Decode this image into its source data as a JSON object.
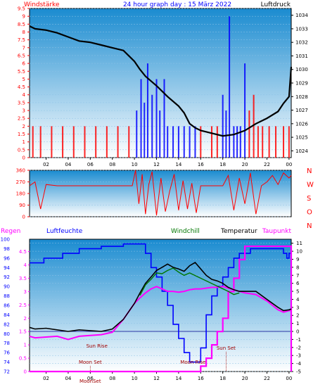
{
  "colors": {
    "red": "#ff0000",
    "blue": "#0000ff",
    "black": "#000000",
    "green": "#007700",
    "magenta": "#ff00ff",
    "moon": "#a00000",
    "bg_top": "#1a8bd0",
    "bg_bottom": "#ffffff"
  },
  "chart_data": [
    {
      "type": "bar",
      "title": "24 hour graph day : 15 März 2022",
      "y_left_label": "Windstärke",
      "y_right_label": "Luftdruck",
      "x_ticks": [
        "02",
        "04",
        "06",
        "08",
        "10",
        "12",
        "14",
        "16",
        "18",
        "20",
        "22",
        "00"
      ],
      "y_left_ticks": [
        "0",
        "0.5",
        "1",
        "1.5",
        "2",
        "2.5",
        "3",
        "3.5",
        "4",
        "4.5",
        "5",
        "5.5",
        "6",
        "6.5",
        "7",
        "7.5",
        "8",
        "8.5",
        "9",
        "9.5"
      ],
      "y_right_ticks": [
        "1024",
        "1025",
        "1026",
        "1027",
        "1028",
        "1029",
        "1030",
        "1031",
        "1032",
        "1033",
        "1034"
      ],
      "ylim_left": [
        0,
        9.5
      ],
      "ylim_right": [
        1023.5,
        1034.5
      ],
      "xlim": [
        0.5,
        24.2
      ],
      "series": [
        {
          "name": "Windstärke",
          "kind": "bars",
          "x": [
            0.8,
            1.5,
            2.5,
            3.5,
            4.5,
            5.5,
            6.5,
            7.5,
            8.5,
            9.5,
            10.2,
            10.6,
            10.9,
            11.2,
            11.6,
            12.0,
            12.3,
            12.7,
            13.0,
            13.5,
            14.0,
            14.5,
            15.0,
            15.5,
            16.0,
            17.0,
            17.5,
            18.0,
            18.3,
            18.6,
            19.0,
            19.3,
            19.6,
            20.0,
            20.4,
            20.8,
            21.2,
            21.6,
            22.2,
            22.8,
            23.5,
            24.0
          ],
          "values": [
            2,
            2,
            2,
            2,
            2,
            2,
            2,
            2,
            2,
            2,
            3,
            5,
            3.5,
            6,
            4,
            5,
            3,
            5,
            2,
            2,
            2,
            2,
            2,
            2,
            2,
            2,
            2,
            4,
            3,
            9,
            2,
            2,
            2,
            6,
            3,
            4,
            2,
            2,
            2,
            2,
            2,
            2
          ]
        },
        {
          "name": "Luftdruck",
          "kind": "line",
          "x": [
            0.5,
            1,
            2,
            3,
            4,
            5,
            6,
            7,
            8,
            9,
            10,
            10.5,
            11,
            12,
            13,
            14,
            14.5,
            15,
            15.5,
            16,
            17,
            18,
            19,
            20,
            21,
            22,
            23,
            23.5,
            24,
            24.2
          ],
          "values": [
            1033.2,
            1033.0,
            1032.9,
            1032.7,
            1032.4,
            1032.1,
            1032.0,
            1031.8,
            1031.6,
            1031.4,
            1030.6,
            1030.0,
            1029.5,
            1028.8,
            1028.0,
            1027.3,
            1026.8,
            1026.0,
            1025.7,
            1025.5,
            1025.3,
            1025.1,
            1025.2,
            1025.5,
            1026.0,
            1026.4,
            1026.9,
            1027.5,
            1028.0,
            1030.2
          ]
        }
      ]
    },
    {
      "type": "line",
      "title": "",
      "y_right_labels": [
        "N",
        "W",
        "S",
        "O",
        "N"
      ],
      "y_ticks": [
        "0",
        "90",
        "180",
        "270",
        "360"
      ],
      "ylim": [
        0,
        360
      ],
      "xlim": [
        0.5,
        24.2
      ],
      "series": [
        {
          "name": "Windrichtung",
          "x": [
            0.5,
            1.0,
            1.5,
            2.0,
            3,
            4,
            5,
            6,
            7,
            8,
            9,
            9.8,
            10.1,
            10.4,
            10.7,
            11,
            11.3,
            11.6,
            12,
            12.4,
            12.8,
            13.2,
            13.6,
            14,
            14.4,
            14.8,
            15.2,
            15.6,
            16,
            16.5,
            17,
            18,
            18.5,
            19,
            19.5,
            20,
            20.5,
            21,
            21.5,
            22,
            22.5,
            23,
            23.5,
            24,
            24.2
          ],
          "values": [
            240,
            270,
            60,
            250,
            240,
            240,
            240,
            240,
            240,
            240,
            240,
            240,
            360,
            100,
            330,
            20,
            250,
            350,
            10,
            300,
            40,
            200,
            330,
            50,
            280,
            60,
            260,
            30,
            240,
            240,
            240,
            240,
            320,
            50,
            300,
            100,
            340,
            20,
            240,
            270,
            320,
            250,
            340,
            300,
            320
          ]
        }
      ]
    },
    {
      "type": "line",
      "title": "",
      "legend": [
        "Regen",
        "Luftfeuchte",
        "Windchill",
        "Temperatur",
        "Taupunkt"
      ],
      "x_ticks": [
        "02",
        "04",
        "06",
        "08",
        "10",
        "12",
        "14",
        "16",
        "18",
        "20",
        "22",
        "00"
      ],
      "y_left_rain_ticks": [
        "0",
        "0.5",
        "1",
        "1.5",
        "2",
        "2.5",
        "3",
        "3.5",
        "4",
        "4.5"
      ],
      "y_left_humidity_ticks": [
        "72",
        "74",
        "76",
        "78",
        "80",
        "82",
        "84",
        "86",
        "88",
        "90",
        "92",
        "94",
        "96",
        "98",
        "100"
      ],
      "y_right_ticks": [
        "-5",
        "-4",
        "-3",
        "-2",
        "-1",
        "0",
        "1",
        "2",
        "3",
        "4",
        "5",
        "6",
        "7",
        "8",
        "9",
        "10",
        "11"
      ],
      "ylim_humidity": [
        72,
        100
      ],
      "ylim_temp": [
        -5,
        11.5
      ],
      "xlim": [
        0.5,
        24.2
      ],
      "series": [
        {
          "name": "Luftfeuchte",
          "x": [
            0.5,
            1.5,
            1.8,
            3,
            3.5,
            4.5,
            5,
            6,
            7,
            8,
            9,
            10,
            10.8,
            11,
            11.5,
            12,
            12.5,
            13,
            13.5,
            14,
            14.5,
            15,
            15.5,
            16,
            16.5,
            17,
            17.5,
            18,
            18.5,
            19,
            19.5,
            20,
            20.5,
            21,
            22,
            23,
            23.5,
            23.8,
            24.0,
            24.2
          ],
          "values": [
            95,
            95,
            96,
            96,
            97,
            97,
            98,
            98,
            98.5,
            98.5,
            99,
            99,
            99,
            97,
            94,
            92,
            89,
            86,
            82,
            79,
            76,
            74,
            74,
            77,
            84,
            88,
            90,
            92,
            94,
            96,
            97,
            97,
            98,
            98,
            98,
            98,
            97,
            96,
            97,
            96
          ]
        },
        {
          "name": "Temperatur",
          "x": [
            0.5,
            1,
            2,
            3,
            4,
            5,
            6,
            7,
            8,
            9,
            10,
            10.5,
            11,
            11.5,
            12,
            12.5,
            13,
            13.5,
            14,
            14.5,
            15,
            15.5,
            16,
            16.5,
            17,
            17.5,
            18,
            18.5,
            19,
            19.5,
            20,
            21,
            22,
            23,
            23.5,
            24.0,
            24.2
          ],
          "values": [
            0.5,
            0.3,
            0.4,
            0.2,
            0.0,
            0.2,
            0.1,
            0.0,
            0.3,
            1.5,
            3.5,
            4.8,
            6.0,
            6.8,
            7.6,
            8.0,
            8.4,
            8.0,
            7.8,
            7.5,
            8.2,
            8.6,
            7.8,
            7.0,
            6.5,
            6.3,
            6.0,
            5.5,
            5.2,
            5.0,
            5.0,
            5.0,
            4.0,
            3.0,
            2.6,
            2.7,
            2.8
          ]
        },
        {
          "name": "Windchill",
          "x": [
            10.5,
            11,
            11.5,
            12,
            12.5,
            13,
            13.5,
            14,
            14.5,
            15,
            18.5,
            19,
            19.5
          ],
          "values": [
            4.5,
            5.8,
            6.5,
            7.3,
            7.2,
            7.6,
            7.9,
            7.4,
            7.0,
            7.3,
            5.0,
            4.6,
            4.8
          ]
        },
        {
          "name": "Taupunkt",
          "x": [
            0.5,
            1,
            2,
            3,
            4,
            5,
            6,
            7,
            8,
            9,
            10,
            10.5,
            11,
            11.5,
            12,
            12.5,
            13,
            13.5,
            14,
            14.5,
            15,
            15.5,
            16,
            16.5,
            17,
            17.5,
            18,
            18.5,
            19,
            19.5,
            20,
            21,
            22,
            23,
            23.5,
            24.0,
            24.2
          ],
          "values": [
            -0.6,
            -0.8,
            -0.7,
            -0.6,
            -1.0,
            -0.6,
            -0.5,
            -0.4,
            -0.1,
            1.5,
            3.5,
            4.2,
            4.8,
            5.3,
            5.6,
            5.3,
            5.0,
            5.0,
            4.9,
            5.0,
            5.2,
            5.3,
            5.3,
            5.4,
            5.5,
            5.5,
            5.6,
            5.4,
            5.2,
            5.0,
            4.8,
            4.6,
            3.8,
            2.7,
            2.4,
            2.6,
            2.6
          ]
        },
        {
          "name": "Regen",
          "x": [
            0.5,
            15.8,
            16.0,
            16.5,
            17.0,
            17.5,
            18.0,
            18.5,
            19.0,
            19.5,
            20.0,
            20.5,
            21,
            22,
            23,
            23.8,
            24.0,
            24.1,
            24.2
          ],
          "values": [
            0,
            0,
            0.2,
            0.5,
            1.0,
            1.5,
            2.0,
            3.0,
            3.5,
            4.2,
            4.7,
            4.7,
            4.7,
            4.7,
            4.7,
            4.7,
            4.7,
            4.7,
            0
          ]
        }
      ],
      "annotations": [
        {
          "text": "Sun Rise",
          "x": 6.6
        },
        {
          "text": "Moon Set",
          "x": 6.0
        },
        {
          "text": "MoonSet",
          "x": 6.0
        },
        {
          "text": "Moon Rise",
          "x": 15.3
        },
        {
          "text": "Sun Set",
          "x": 18.3
        }
      ]
    }
  ]
}
